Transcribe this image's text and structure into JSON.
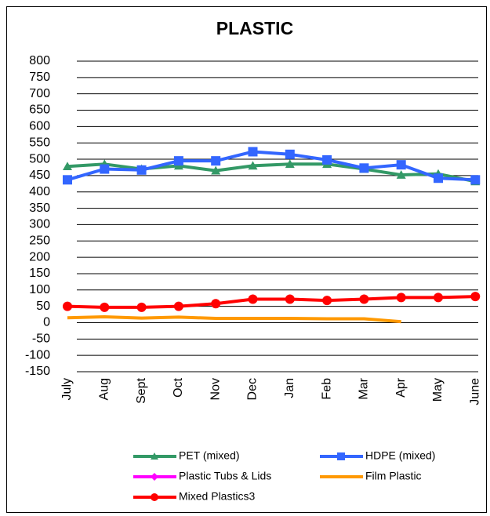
{
  "chart_data": {
    "type": "line",
    "title": "PLASTIC",
    "categories": [
      "July",
      "Aug",
      "Sept",
      "Oct",
      "Nov",
      "Dec",
      "Jan",
      "Feb",
      "Mar",
      "Apr",
      "May",
      "June"
    ],
    "series": [
      {
        "name": "PET (mixed)",
        "color": "#339966",
        "marker": "triangle",
        "values": [
          478,
          485,
          470,
          480,
          465,
          480,
          485,
          485,
          470,
          452,
          455,
          432
        ]
      },
      {
        "name": "HDPE (mixed)",
        "color": "#3366ff",
        "marker": "square",
        "values": [
          437,
          470,
          467,
          495,
          495,
          523,
          515,
          498,
          473,
          483,
          442,
          437
        ]
      },
      {
        "name": "Plastic Tubs & Lids",
        "color": "#ff00ff",
        "marker": "diamond",
        "values": [
          null,
          null,
          null,
          null,
          null,
          null,
          null,
          null,
          null,
          null,
          null,
          null
        ]
      },
      {
        "name": "Film Plastic",
        "color": "#ff9900",
        "marker": "none",
        "values": [
          15,
          18,
          14,
          17,
          13,
          13,
          13,
          12,
          12,
          3,
          null,
          null
        ]
      },
      {
        "name": "Mixed Plastics3",
        "color": "#ff0000",
        "marker": "circle",
        "values": [
          50,
          47,
          47,
          50,
          58,
          72,
          72,
          68,
          72,
          77,
          77,
          80
        ]
      }
    ],
    "ylim": [
      -150,
      800
    ],
    "yticks": [
      -150,
      -100,
      -50,
      0,
      50,
      100,
      150,
      200,
      250,
      300,
      350,
      400,
      450,
      500,
      550,
      600,
      650,
      700,
      750,
      800
    ],
    "grid": true
  }
}
